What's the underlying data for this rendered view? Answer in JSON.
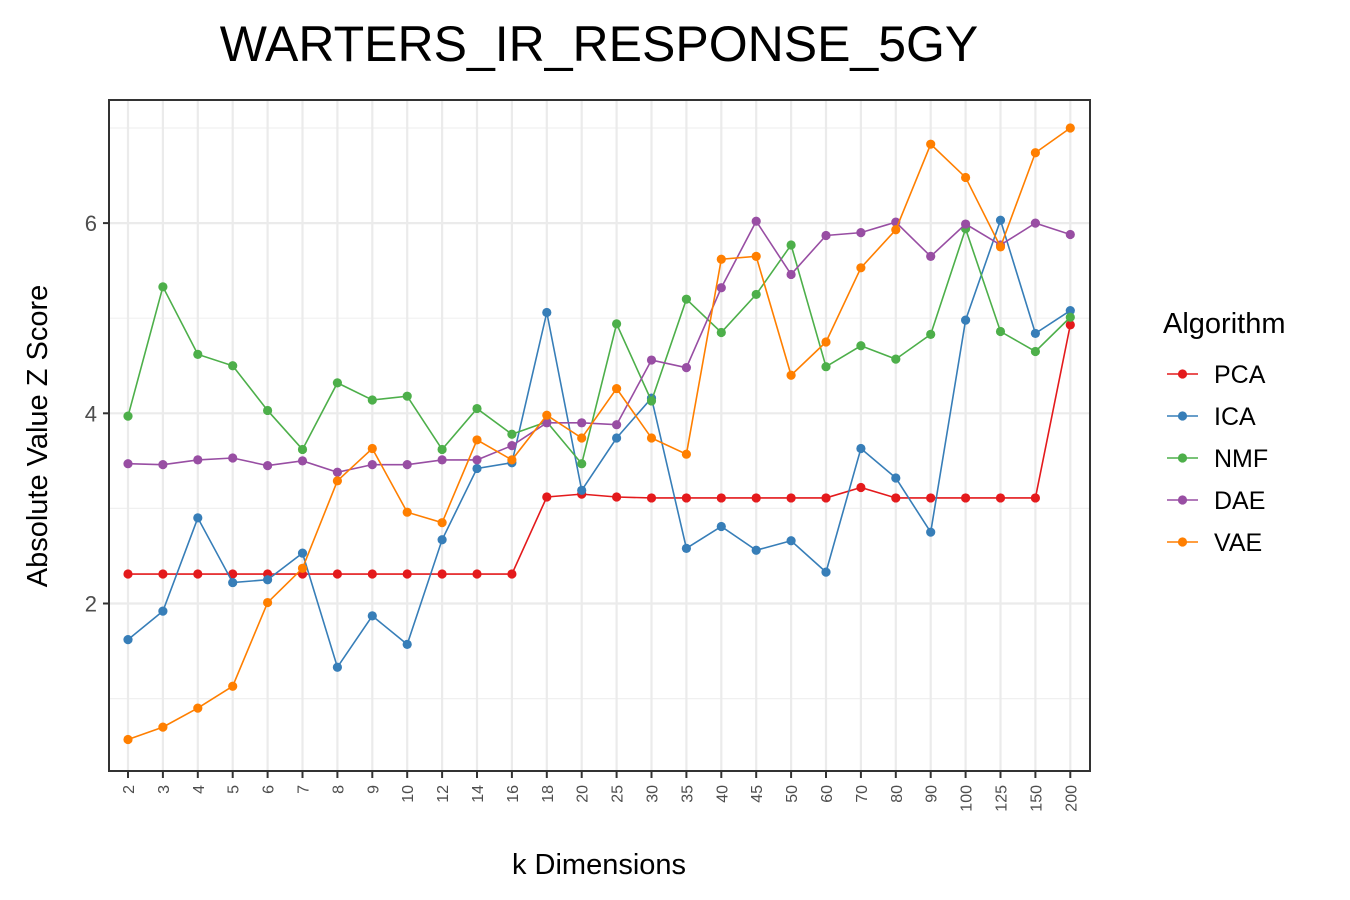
{
  "chart_data": {
    "type": "line",
    "title": "WARTERS_IR_RESPONSE_5GY",
    "xlabel": "k Dimensions",
    "ylabel": "Absolute Value Z Score",
    "ylim": [
      0.35,
      7.3
    ],
    "yticks": [
      2,
      4,
      6
    ],
    "grid": true,
    "legend_title": "Algorithm",
    "legend_position": "right",
    "categories": [
      "2",
      "3",
      "4",
      "5",
      "6",
      "7",
      "8",
      "9",
      "10",
      "12",
      "14",
      "16",
      "18",
      "20",
      "25",
      "30",
      "35",
      "40",
      "45",
      "50",
      "60",
      "70",
      "80",
      "90",
      "100",
      "125",
      "150",
      "200"
    ],
    "series": [
      {
        "name": "PCA",
        "color": "#e41a1c",
        "values": [
          2.31,
          2.31,
          2.31,
          2.31,
          2.31,
          2.31,
          2.31,
          2.31,
          2.31,
          2.31,
          2.31,
          2.31,
          3.12,
          3.15,
          3.12,
          3.11,
          3.11,
          3.11,
          3.11,
          3.11,
          3.11,
          3.22,
          3.11,
          3.11,
          3.11,
          3.11,
          3.11,
          4.93
        ]
      },
      {
        "name": "ICA",
        "color": "#377eb8",
        "values": [
          1.62,
          1.92,
          2.9,
          2.22,
          2.25,
          2.53,
          1.33,
          1.87,
          1.57,
          2.67,
          3.42,
          3.48,
          5.06,
          3.19,
          3.74,
          4.16,
          2.58,
          2.81,
          2.56,
          2.66,
          2.33,
          3.63,
          3.32,
          2.75,
          4.98,
          6.03,
          4.84,
          5.08
        ]
      },
      {
        "name": "NMF",
        "color": "#4daf4a",
        "values": [
          3.97,
          5.33,
          4.62,
          4.5,
          4.03,
          3.62,
          4.32,
          4.14,
          4.18,
          3.62,
          4.05,
          3.78,
          3.91,
          3.47,
          4.94,
          4.13,
          5.2,
          4.85,
          5.25,
          5.77,
          4.49,
          4.71,
          4.57,
          4.83,
          5.94,
          4.86,
          4.65,
          5.01
        ]
      },
      {
        "name": "DAE",
        "color": "#984ea3",
        "values": [
          3.47,
          3.46,
          3.51,
          3.53,
          3.45,
          3.5,
          3.38,
          3.46,
          3.46,
          3.51,
          3.51,
          3.66,
          3.9,
          3.9,
          3.88,
          4.56,
          4.48,
          5.32,
          6.02,
          5.46,
          5.87,
          5.9,
          6.01,
          5.65,
          5.99,
          5.77,
          6.0,
          5.88
        ]
      },
      {
        "name": "VAE",
        "color": "#ff7f00",
        "values": [
          0.57,
          0.7,
          0.9,
          1.13,
          2.01,
          2.37,
          3.29,
          3.63,
          2.96,
          2.85,
          3.72,
          3.51,
          3.98,
          3.74,
          4.26,
          3.74,
          3.57,
          5.62,
          5.65,
          4.4,
          4.75,
          5.53,
          5.93,
          6.83,
          6.48,
          5.75,
          6.74,
          7.0
        ]
      }
    ]
  }
}
